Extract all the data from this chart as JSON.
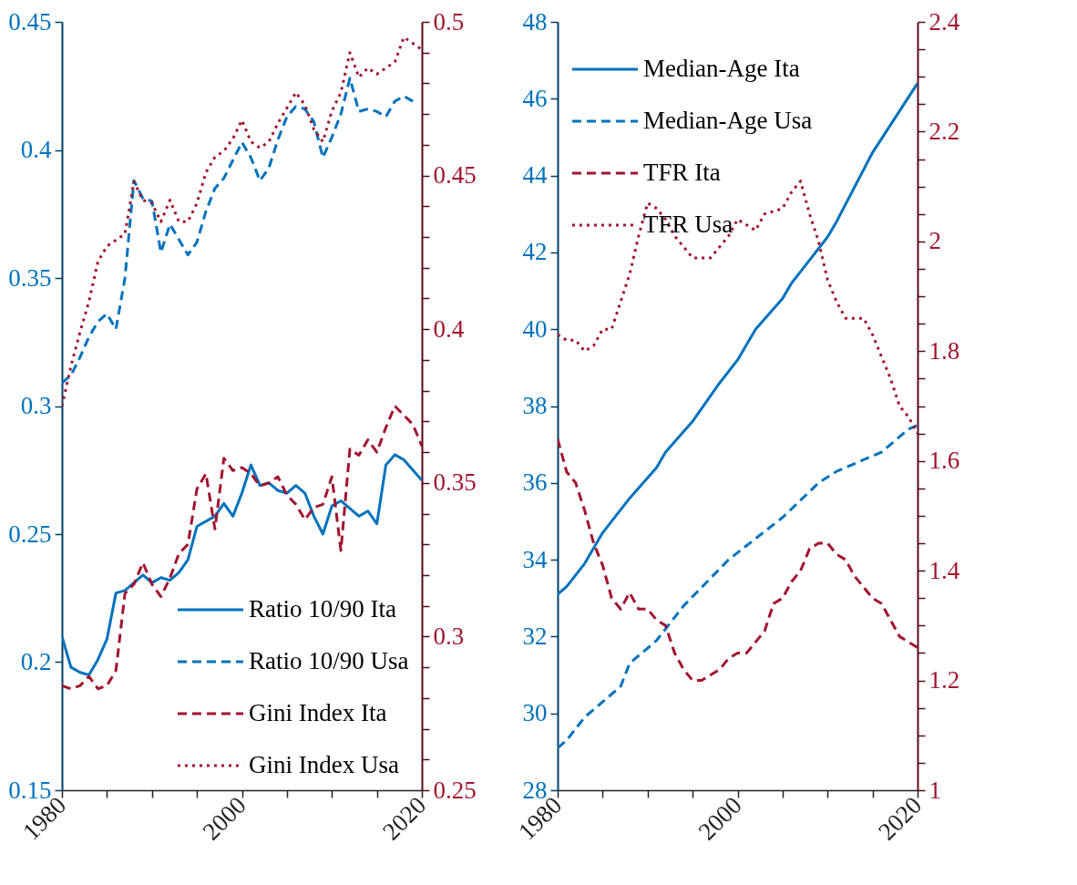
{
  "chart_data": [
    {
      "type": "line",
      "legend": "bottom right",
      "xlim": [
        1980,
        2020
      ],
      "xticks": [
        1980,
        {
          "value": 1985,
          "label": null
        },
        {
          "value": 1990,
          "label": null
        },
        {
          "value": 1995,
          "label": null
        },
        2000,
        {
          "value": 2005,
          "label": null
        },
        {
          "value": 2010,
          "label": null
        },
        {
          "value": 2015,
          "label": null
        },
        2020
      ],
      "ylim": [
        0.15,
        0.45
      ],
      "yticks": [
        0.15,
        0.2,
        0.25,
        0.3,
        0.35,
        0.4,
        0.45
      ],
      "y2lim": [
        0.25,
        0.5
      ],
      "y2ticks": [
        0.25,
        {
          "value": 0.26,
          "label": null
        },
        {
          "value": 0.27,
          "label": null
        },
        {
          "value": 0.28,
          "label": null
        },
        {
          "value": 0.29,
          "label": null
        },
        0.3,
        {
          "value": 0.31,
          "label": null
        },
        {
          "value": 0.32,
          "label": null
        },
        {
          "value": 0.33,
          "label": null
        },
        {
          "value": 0.34,
          "label": null
        },
        0.35,
        {
          "value": 0.36,
          "label": null
        },
        {
          "value": 0.37,
          "label": null
        },
        {
          "value": 0.38,
          "label": null
        },
        {
          "value": 0.39,
          "label": null
        },
        0.4,
        {
          "value": 0.41,
          "label": null
        },
        {
          "value": 0.42,
          "label": null
        },
        {
          "value": 0.43,
          "label": null
        },
        {
          "value": 0.44,
          "label": null
        },
        0.45,
        {
          "value": 0.46,
          "label": null
        },
        {
          "value": 0.47,
          "label": null
        },
        {
          "value": 0.48,
          "label": null
        },
        {
          "value": 0.49,
          "label": null
        },
        0.5
      ],
      "x": [
        1980,
        1981,
        1982,
        1983,
        1984,
        1985,
        1986,
        1987,
        1988,
        1989,
        1990,
        1991,
        1992,
        1993,
        1994,
        1995,
        1996,
        1997,
        1998,
        1999,
        2000,
        2001,
        2002,
        2003,
        2004,
        2005,
        2006,
        2007,
        2008,
        2009,
        2010,
        2011,
        2012,
        2013,
        2014,
        2015,
        2016,
        2017,
        2018,
        2019,
        2020
      ],
      "series": [
        {
          "name": "Ratio 10/90 Ita",
          "color": "#0072bd",
          "line_style": "solid",
          "values": [
            0.21,
            0.198,
            0.196,
            0.195,
            0.201,
            0.209,
            0.227,
            0.228,
            0.231,
            0.234,
            0.231,
            0.233,
            0.232,
            0.235,
            0.24,
            0.253,
            0.255,
            0.257,
            0.262,
            0.257,
            0.266,
            0.277,
            0.269,
            0.27,
            0.267,
            0.266,
            0.269,
            0.266,
            0.257,
            0.25,
            0.261,
            0.263,
            0.26,
            0.257,
            0.259,
            0.254,
            0.277,
            0.281,
            0.279,
            0.275,
            0.271
          ]
        },
        {
          "name": "Ratio 10/90 Usa",
          "color": "#0072bd",
          "line_style": "dashed",
          "values": [
            0.309,
            0.312,
            0.319,
            0.327,
            0.333,
            0.336,
            0.33,
            0.35,
            0.388,
            0.381,
            0.38,
            0.36,
            0.371,
            0.365,
            0.359,
            0.364,
            0.376,
            0.385,
            0.389,
            0.396,
            0.403,
            0.397,
            0.388,
            0.393,
            0.404,
            0.413,
            0.417,
            0.416,
            0.411,
            0.397,
            0.405,
            0.414,
            0.428,
            0.415,
            0.416,
            0.415,
            0.413,
            0.419,
            0.421,
            0.419,
            null
          ]
        },
        {
          "name": "Gini Index Ita",
          "color": "#a2142f",
          "line_style": "dashed",
          "axis": "y2",
          "values": [
            0.284,
            0.283,
            0.284,
            0.287,
            0.283,
            0.284,
            0.289,
            0.314,
            0.317,
            0.324,
            0.317,
            0.313,
            0.319,
            0.327,
            0.33,
            0.348,
            0.353,
            0.335,
            0.358,
            0.354,
            0.355,
            0.353,
            0.349,
            0.35,
            0.352,
            0.346,
            0.343,
            0.338,
            0.342,
            0.343,
            0.352,
            0.328,
            0.361,
            0.359,
            0.364,
            0.36,
            0.368,
            0.375,
            0.372,
            0.369,
            0.362
          ]
        },
        {
          "name": "Gini Index Usa",
          "color": "#a2142f",
          "line_style": "dotted",
          "axis": "y2",
          "values": [
            0.375,
            0.388,
            0.399,
            0.409,
            0.422,
            0.427,
            0.429,
            0.431,
            0.448,
            0.442,
            0.441,
            0.435,
            0.442,
            0.435,
            0.435,
            0.441,
            0.451,
            0.456,
            0.458,
            0.462,
            0.468,
            0.461,
            0.459,
            0.461,
            0.467,
            0.472,
            0.477,
            0.473,
            0.465,
            0.461,
            0.471,
            0.477,
            0.49,
            0.482,
            0.485,
            0.483,
            0.485,
            0.487,
            0.495,
            0.493,
            0.491
          ]
        }
      ]
    },
    {
      "type": "line",
      "legend": "top left",
      "xlim": [
        1980,
        2020
      ],
      "xticks": [
        1980,
        {
          "value": 1985,
          "label": null
        },
        {
          "value": 1990,
          "label": null
        },
        {
          "value": 1995,
          "label": null
        },
        2000,
        {
          "value": 2005,
          "label": null
        },
        {
          "value": 2010,
          "label": null
        },
        {
          "value": 2015,
          "label": null
        },
        2020
      ],
      "ylim": [
        28,
        48
      ],
      "yticks": [
        28,
        30,
        32,
        34,
        36,
        38,
        40,
        42,
        44,
        46,
        48
      ],
      "y2lim": [
        1,
        2.4
      ],
      "y2ticks": [
        1,
        {
          "value": 1.05,
          "label": null
        },
        {
          "value": 1.1,
          "label": null
        },
        {
          "value": 1.15,
          "label": null
        },
        1.2,
        {
          "value": 1.25,
          "label": null
        },
        {
          "value": 1.3,
          "label": null
        },
        {
          "value": 1.35,
          "label": null
        },
        1.4,
        {
          "value": 1.45,
          "label": null
        },
        {
          "value": 1.5,
          "label": null
        },
        {
          "value": 1.55,
          "label": null
        },
        1.6,
        {
          "value": 1.65,
          "label": null
        },
        {
          "value": 1.7,
          "label": null
        },
        {
          "value": 1.75,
          "label": null
        },
        1.8,
        {
          "value": 1.85,
          "label": null
        },
        {
          "value": 1.9,
          "label": null
        },
        {
          "value": 1.95,
          "label": null
        },
        2,
        {
          "value": 2.05,
          "label": null
        },
        {
          "value": 2.1,
          "label": null
        },
        {
          "value": 2.15,
          "label": null
        },
        2.2,
        {
          "value": 2.25,
          "label": null
        },
        {
          "value": 2.3,
          "label": null
        },
        {
          "value": 2.35,
          "label": null
        },
        2.4
      ],
      "x": [
        1980,
        1981,
        1982,
        1983,
        1984,
        1985,
        1986,
        1987,
        1988,
        1989,
        1990,
        1991,
        1992,
        1993,
        1994,
        1995,
        1996,
        1997,
        1998,
        1999,
        2000,
        2001,
        2002,
        2003,
        2004,
        2005,
        2006,
        2007,
        2008,
        2009,
        2010,
        2011,
        2012,
        2013,
        2014,
        2015,
        2016,
        2017,
        2018,
        2019,
        2020
      ],
      "series": [
        {
          "name": "Median-Age Ita",
          "color": "#0072bd",
          "line_style": "solid",
          "x": [
            1980,
            1981,
            1983,
            1985,
            1988,
            1991,
            1992,
            1995,
            1998,
            2000,
            2002,
            2005,
            2006,
            2008,
            2010,
            2011,
            2015,
            2020
          ],
          "values": [
            33.1,
            33.3,
            33.9,
            34.7,
            35.6,
            36.4,
            36.8,
            37.6,
            38.6,
            39.2,
            40.0,
            40.8,
            41.2,
            41.8,
            42.4,
            42.8,
            44.6,
            46.4
          ]
        },
        {
          "name": "Median-Age Usa",
          "color": "#0072bd",
          "line_style": "dashed",
          "x": [
            1980,
            1981,
            1983,
            1987,
            1988,
            1991,
            1994,
            1999,
            2005,
            2009,
            2011,
            2016,
            2019,
            2020
          ],
          "values": [
            29.1,
            29.3,
            29.9,
            30.7,
            31.3,
            31.9,
            32.8,
            34.0,
            35.1,
            36.0,
            36.3,
            36.8,
            37.4,
            37.5
          ]
        },
        {
          "name": "TFR Ita",
          "color": "#a2142f",
          "line_style": "dashed",
          "axis": "y2",
          "values": [
            1.64,
            1.58,
            1.56,
            1.51,
            1.45,
            1.41,
            1.35,
            1.33,
            1.36,
            1.33,
            1.33,
            1.31,
            1.3,
            1.25,
            1.22,
            1.2,
            1.2,
            1.21,
            1.22,
            1.24,
            1.25,
            1.25,
            1.27,
            1.29,
            1.34,
            1.35,
            1.38,
            1.4,
            1.44,
            1.45,
            1.45,
            1.43,
            1.42,
            1.39,
            1.37,
            1.35,
            1.34,
            1.31,
            1.28,
            1.27,
            1.26
          ]
        },
        {
          "name": "TFR Usa",
          "color": "#a2142f",
          "line_style": "dotted",
          "axis": "y2",
          "x": [
            1980,
            1981,
            1982,
            1983,
            1984,
            1985,
            1986,
            1987,
            1988,
            1989,
            1990,
            1991,
            1992,
            1993,
            1994,
            1995,
            1997,
            1998,
            1999,
            2000,
            2001,
            2002,
            2003,
            2005,
            2006,
            2007,
            2008,
            2009,
            2010,
            2011,
            2012,
            2014,
            2015,
            2016,
            2017,
            2018,
            2019,
            2020
          ],
          "values": [
            1.83,
            1.82,
            1.82,
            1.8,
            1.81,
            1.84,
            1.84,
            1.89,
            1.94,
            2.01,
            2.07,
            2.06,
            2.04,
            2.01,
            1.99,
            1.97,
            1.97,
            1.99,
            2.01,
            2.04,
            2.03,
            2.02,
            2.05,
            2.06,
            2.09,
            2.11,
            2.05,
            2.0,
            1.93,
            1.89,
            1.86,
            1.86,
            1.83,
            1.79,
            1.75,
            1.7,
            1.68,
            1.65
          ]
        }
      ]
    }
  ]
}
